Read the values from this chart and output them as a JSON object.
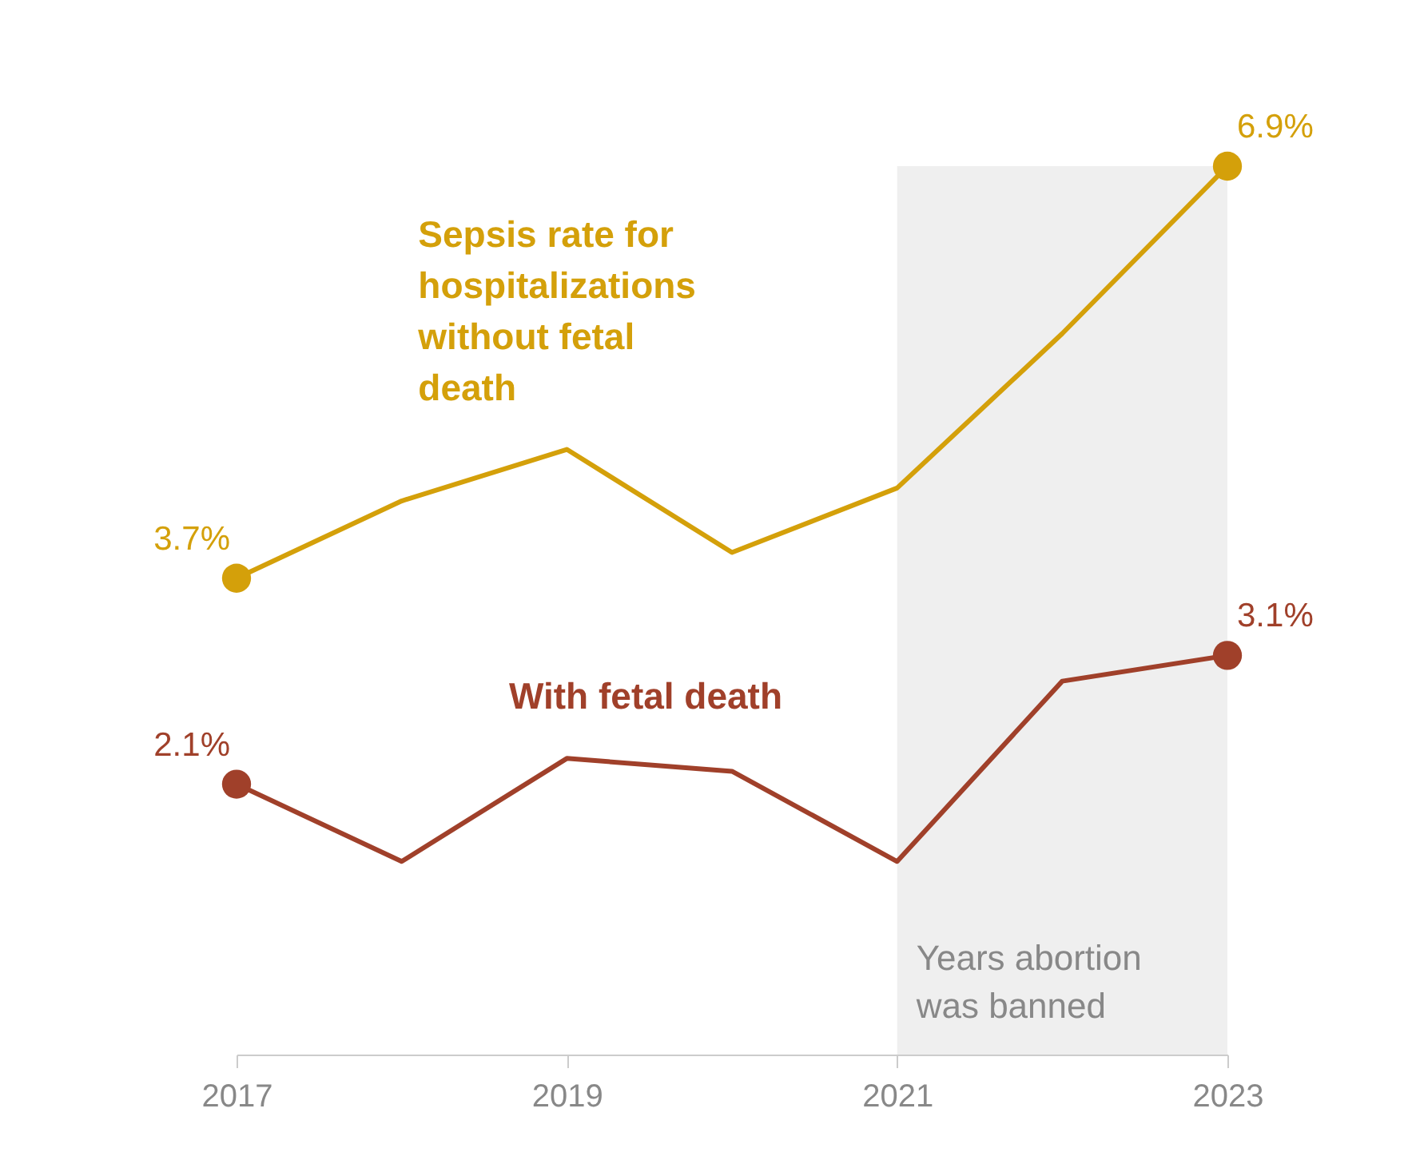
{
  "chart_data": {
    "type": "line",
    "x": [
      2017,
      2018,
      2019,
      2020,
      2021,
      2022,
      2023
    ],
    "xlim": [
      2017,
      2023
    ],
    "xticks": [
      2017,
      2019,
      2021,
      2023
    ],
    "series": [
      {
        "name": "Sepsis rate for hospitalizations without fetal death",
        "color": "#d4a00a",
        "values": [
          3.7,
          4.3,
          4.7,
          3.9,
          4.4,
          5.6,
          6.9
        ],
        "value_labels": [
          "3.7%",
          null,
          null,
          null,
          null,
          null,
          "6.9%"
        ]
      },
      {
        "name": "With fetal death",
        "color": "#a0402a",
        "values": [
          2.1,
          1.5,
          2.3,
          2.2,
          1.5,
          2.9,
          3.1
        ],
        "value_labels": [
          "2.1%",
          null,
          null,
          null,
          null,
          null,
          "3.1%"
        ]
      }
    ],
    "bands": [
      {
        "axis": "x",
        "from": 2021,
        "to": 2023,
        "label": "Years abortion was banned",
        "color": "#efefef"
      }
    ],
    "line_style": "solid",
    "grid": false,
    "tick_labels": "x"
  }
}
